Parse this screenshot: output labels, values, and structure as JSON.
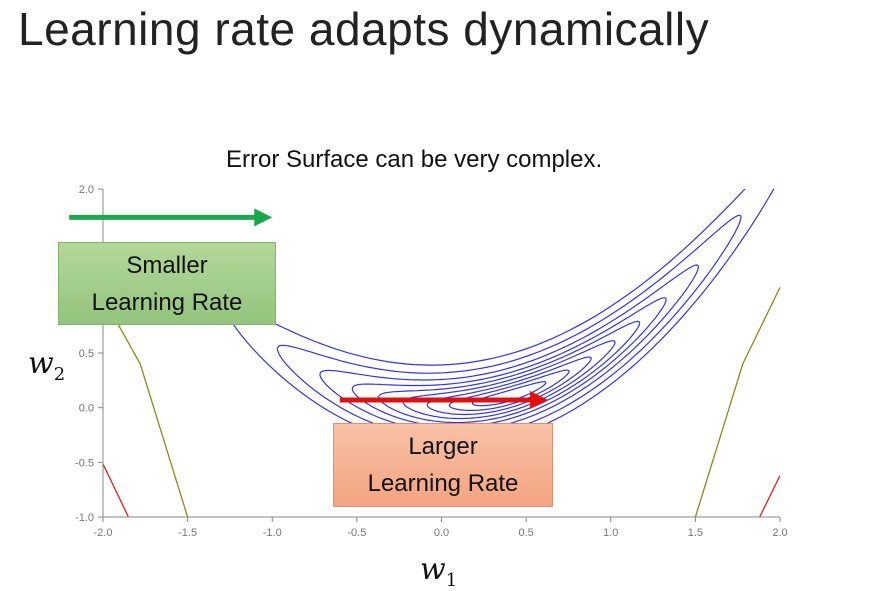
{
  "title": "Learning rate adapts dynamically",
  "caption": "Error Surface can be very complex.",
  "callouts": {
    "smaller": [
      "Smaller",
      "Learning Rate"
    ],
    "larger": [
      "Larger",
      "Learning Rate"
    ]
  },
  "axes": {
    "x_var": "w",
    "x_sub": "1",
    "y_var": "w",
    "y_sub": "2"
  },
  "chart_data": {
    "type": "line",
    "xlim": [
      -2.0,
      2.0
    ],
    "ylim": [
      -1.0,
      2.0
    ],
    "x_ticks": [
      "-2.0",
      "-1.5",
      "-1.0",
      "-0.5",
      "0.0",
      "0.5",
      "1.0",
      "1.5",
      "2.0"
    ],
    "y_ticks": [
      "2.0",
      "0.5",
      "0.0",
      "-0.5",
      "-1.0"
    ],
    "arrows": [
      {
        "name": "smaller-step",
        "from": [
          -2.2,
          1.74
        ],
        "to": [
          -1.0,
          1.74
        ],
        "color": "#1aa84f"
      },
      {
        "name": "larger-step",
        "from": [
          -0.6,
          0.07
        ],
        "to": [
          0.63,
          0.07
        ],
        "color": "#e01010"
      }
    ],
    "colors": {
      "contour": "#3535dd",
      "outer_contour": "#8a8a1a",
      "red_contour": "#e02020",
      "axis": "#888888"
    }
  }
}
